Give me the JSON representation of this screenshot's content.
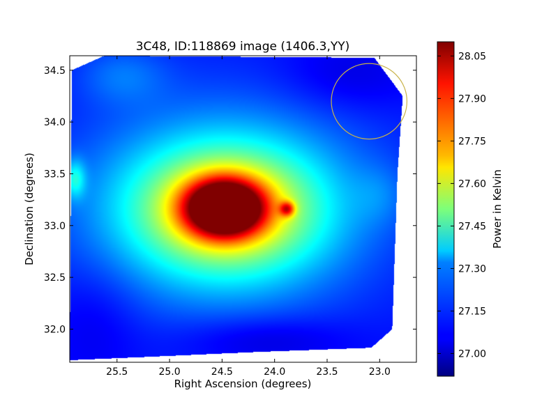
{
  "chart_data": {
    "type": "heatmap",
    "title": "3C48, ID:118869 image (1406.3,YY)",
    "xlabel": "Right Ascension (degrees)",
    "ylabel": "Declination (degrees)",
    "xlim": [
      25.95,
      22.65
    ],
    "ylim": [
      31.68,
      34.64
    ],
    "x_inverted": true,
    "x_ticks": [
      25.5,
      25.0,
      24.5,
      24.0,
      23.5,
      23.0
    ],
    "x_tick_labels": [
      "25.5",
      "25.0",
      "24.5",
      "24.0",
      "23.5",
      "23.0"
    ],
    "y_ticks": [
      32.0,
      32.5,
      33.0,
      33.5,
      34.0,
      34.5
    ],
    "y_tick_labels": [
      "32.0",
      "32.5",
      "33.0",
      "33.5",
      "34.0",
      "34.5"
    ],
    "colorbar": {
      "label": "Power in Kelvin",
      "range": [
        26.92,
        28.1
      ],
      "ticks": [
        27.0,
        27.15,
        27.3,
        27.45,
        27.6,
        27.75,
        27.9,
        28.05
      ],
      "tick_labels": [
        "27.00",
        "27.15",
        "27.30",
        "27.45",
        "27.60",
        "27.75",
        "27.90",
        "28.05"
      ],
      "colormap": "jet"
    },
    "background_level": 27.08,
    "footprint": [
      [
        25.93,
        34.5
      ],
      [
        25.62,
        34.64
      ],
      [
        23.05,
        34.62
      ],
      [
        22.78,
        34.25
      ],
      [
        22.83,
        33.5
      ],
      [
        22.88,
        32.0
      ],
      [
        23.08,
        31.82
      ],
      [
        24.15,
        31.78
      ],
      [
        25.25,
        31.73
      ],
      [
        25.95,
        31.7
      ]
    ],
    "features": [
      {
        "ra": 24.48,
        "dec": 33.17,
        "peak": 0.95,
        "width_ra": 0.26,
        "width_dec": 0.19
      },
      {
        "ra": 24.35,
        "dec": 33.15,
        "peak": 0.12,
        "width_ra": 0.09,
        "width_dec": 0.08
      },
      {
        "ra": 24.45,
        "dec": 33.15,
        "peak": 0.5,
        "width_ra": 0.65,
        "width_dec": 0.45
      },
      {
        "ra": 24.5,
        "dec": 33.2,
        "peak": 0.18,
        "width_ra": 1.05,
        "width_dec": 0.75
      },
      {
        "ra": 23.88,
        "dec": 33.16,
        "peak": 0.4,
        "width_ra": 0.05,
        "width_dec": 0.05
      },
      {
        "ra": 25.9,
        "dec": 33.45,
        "peak": 0.22,
        "width_ra": 0.07,
        "width_dec": 0.13
      },
      {
        "ra": 25.45,
        "dec": 34.45,
        "peak": 0.1,
        "width_ra": 0.3,
        "width_dec": 0.2
      },
      {
        "ra": 23.3,
        "dec": 34.45,
        "peak": -0.06,
        "width_ra": 0.45,
        "width_dec": 0.25
      },
      {
        "ra": 24.1,
        "dec": 31.9,
        "peak": -0.08,
        "width_ra": 0.55,
        "width_dec": 0.16
      },
      {
        "ra": 25.7,
        "dec": 32.1,
        "peak": -0.05,
        "width_ra": 0.3,
        "width_dec": 0.4
      },
      {
        "ra": 23.0,
        "dec": 33.3,
        "peak": 0.06,
        "width_ra": 0.18,
        "width_dec": 0.2
      }
    ],
    "circle": {
      "ra": 23.1,
      "dec": 34.2,
      "radius_ra": 0.36,
      "radius_dec": 0.365,
      "color": "#c8b24a"
    }
  }
}
